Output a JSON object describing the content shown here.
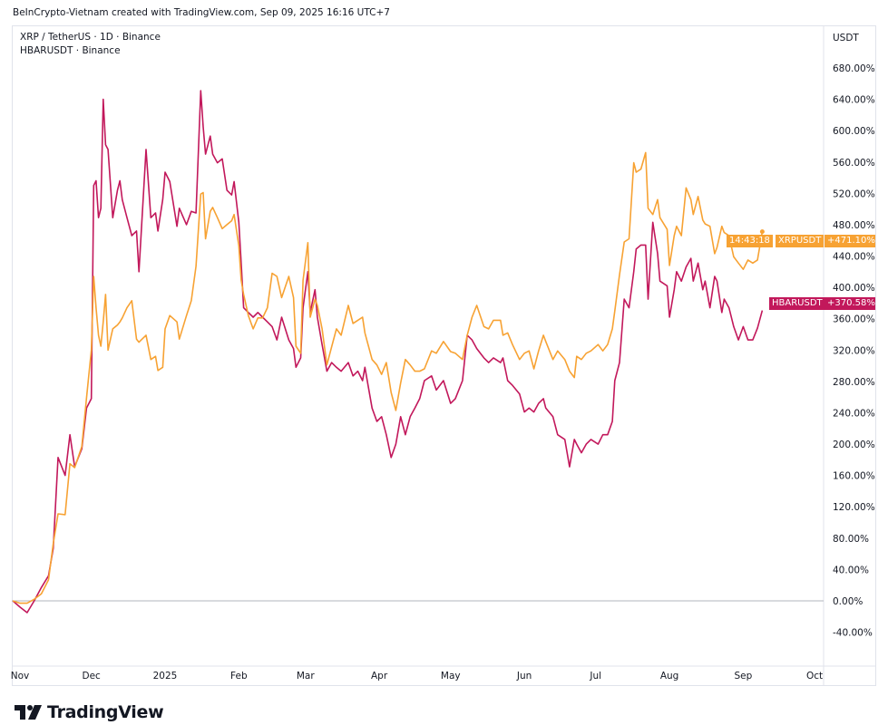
{
  "header": {
    "attribution": "BeInCrypto-Vietnam created with TradingView.com, Sep 09, 2025 16:16 UTC+7"
  },
  "legend": {
    "line1": "XRP / TetherUS · 1D · Binance",
    "line2": "HBARUSDT · Binance"
  },
  "axis_unit": "USDT",
  "logo": {
    "text": "TradingView"
  },
  "colors": {
    "xrp": "#f7a233",
    "hbar": "#c2185b",
    "grid": "#e0e3eb",
    "zero_line": "#b2b5be"
  },
  "chart_data": {
    "type": "line",
    "title": "",
    "xlabel": "",
    "ylabel": "",
    "y_unit": "%",
    "ylim": [
      -60,
      720
    ],
    "grid": false,
    "y_ticks": [
      "680.00%",
      "640.00%",
      "600.00%",
      "560.00%",
      "520.00%",
      "480.00%",
      "440.00%",
      "400.00%",
      "360.00%",
      "320.00%",
      "280.00%",
      "240.00%",
      "200.00%",
      "160.00%",
      "120.00%",
      "80.00%",
      "40.00%",
      "0.00%",
      "-40.00%"
    ],
    "x_ticks": [
      {
        "label": "Nov",
        "date": "2024-11-01"
      },
      {
        "label": "Dec",
        "date": "2024-12-01"
      },
      {
        "label": "2025",
        "date": "2025-01-01"
      },
      {
        "label": "Feb",
        "date": "2025-02-01"
      },
      {
        "label": "Mar",
        "date": "2025-03-01"
      },
      {
        "label": "Apr",
        "date": "2025-04-01"
      },
      {
        "label": "May",
        "date": "2025-05-01"
      },
      {
        "label": "Jun",
        "date": "2025-06-01"
      },
      {
        "label": "Jul",
        "date": "2025-07-01"
      },
      {
        "label": "Aug",
        "date": "2025-08-01"
      },
      {
        "label": "Sep",
        "date": "2025-09-01"
      },
      {
        "label": "Oct",
        "date": "2025-10-01"
      }
    ],
    "x": [
      "2024-10-29",
      "2024-11-01",
      "2024-11-04",
      "2024-11-07",
      "2024-11-10",
      "2024-11-13",
      "2024-11-15",
      "2024-11-17",
      "2024-11-20",
      "2024-11-22",
      "2024-11-24",
      "2024-11-27",
      "2024-11-29",
      "2024-12-01",
      "2024-12-02",
      "2024-12-03",
      "2024-12-04",
      "2024-12-05",
      "2024-12-06",
      "2024-12-07",
      "2024-12-08",
      "2024-12-10",
      "2024-12-12",
      "2024-12-13",
      "2024-12-14",
      "2024-12-16",
      "2024-12-18",
      "2024-12-20",
      "2024-12-21",
      "2024-12-24",
      "2024-12-26",
      "2024-12-28",
      "2024-12-29",
      "2024-12-31",
      "2025-01-01",
      "2025-01-03",
      "2025-01-06",
      "2025-01-07",
      "2025-01-10",
      "2025-01-12",
      "2025-01-14",
      "2025-01-16",
      "2025-01-17",
      "2025-01-18",
      "2025-01-20",
      "2025-01-21",
      "2025-01-23",
      "2025-01-25",
      "2025-01-27",
      "2025-01-29",
      "2025-01-30",
      "2025-02-01",
      "2025-02-02",
      "2025-02-03",
      "2025-02-05",
      "2025-02-07",
      "2025-02-09",
      "2025-02-11",
      "2025-02-13",
      "2025-02-15",
      "2025-02-17",
      "2025-02-19",
      "2025-02-22",
      "2025-02-24",
      "2025-02-25",
      "2025-02-27",
      "2025-02-28",
      "2025-03-02",
      "2025-03-03",
      "2025-03-05",
      "2025-03-06",
      "2025-03-08",
      "2025-03-10",
      "2025-03-12",
      "2025-03-14",
      "2025-03-16",
      "2025-03-19",
      "2025-03-21",
      "2025-03-23",
      "2025-03-25",
      "2025-03-26",
      "2025-03-29",
      "2025-03-31",
      "2025-04-02",
      "2025-04-04",
      "2025-04-06",
      "2025-04-08",
      "2025-04-10",
      "2025-04-12",
      "2025-04-14",
      "2025-04-16",
      "2025-04-18",
      "2025-04-20",
      "2025-04-23",
      "2025-04-25",
      "2025-04-28",
      "2025-05-01",
      "2025-05-03",
      "2025-05-06",
      "2025-05-08",
      "2025-05-10",
      "2025-05-12",
      "2025-05-15",
      "2025-05-17",
      "2025-05-19",
      "2025-05-22",
      "2025-05-23",
      "2025-05-25",
      "2025-05-27",
      "2025-05-30",
      "2025-06-01",
      "2025-06-03",
      "2025-06-05",
      "2025-06-07",
      "2025-06-09",
      "2025-06-10",
      "2025-06-13",
      "2025-06-15",
      "2025-06-18",
      "2025-06-20",
      "2025-06-22",
      "2025-06-23",
      "2025-06-25",
      "2025-06-27",
      "2025-06-29",
      "2025-07-02",
      "2025-07-04",
      "2025-07-06",
      "2025-07-08",
      "2025-07-09",
      "2025-07-11",
      "2025-07-13",
      "2025-07-15",
      "2025-07-17",
      "2025-07-18",
      "2025-07-20",
      "2025-07-22",
      "2025-07-23",
      "2025-07-25",
      "2025-07-27",
      "2025-07-28",
      "2025-07-31",
      "2025-08-01",
      "2025-08-03",
      "2025-08-04",
      "2025-08-06",
      "2025-08-08",
      "2025-08-10",
      "2025-08-11",
      "2025-08-13",
      "2025-08-15",
      "2025-08-16",
      "2025-08-18",
      "2025-08-20",
      "2025-08-21",
      "2025-08-23",
      "2025-08-24",
      "2025-08-26",
      "2025-08-28",
      "2025-08-30",
      "2025-09-01",
      "2025-09-03",
      "2025-09-05",
      "2025-09-07",
      "2025-09-09"
    ],
    "series": [
      {
        "name": "XRPUSDT",
        "last_label": "+471.10%",
        "countdown": "14:43:18",
        "values": [
          0,
          -3,
          -3,
          2,
          9,
          27,
          73,
          111,
          110,
          175,
          170,
          197,
          259,
          320,
          414,
          374,
          339,
          325,
          356,
          391,
          320,
          347,
          352,
          356,
          361,
          374,
          383,
          334,
          330,
          339,
          308,
          312,
          294,
          298,
          347,
          364,
          356,
          334,
          364,
          383,
          427,
          519,
          521,
          462,
          497,
          502,
          489,
          475,
          480,
          485,
          493,
          453,
          409,
          391,
          364,
          347,
          361,
          361,
          374,
          418,
          414,
          387,
          414,
          387,
          325,
          316,
          409,
          457,
          362,
          385,
          377,
          347,
          301,
          324,
          347,
          339,
          377,
          354,
          358,
          362,
          342,
          308,
          301,
          289,
          304,
          266,
          243,
          278,
          308,
          301,
          293,
          293,
          296,
          319,
          316,
          331,
          318,
          316,
          308,
          339,
          362,
          377,
          350,
          347,
          358,
          358,
          339,
          342,
          327,
          308,
          316,
          319,
          296,
          319,
          339,
          331,
          308,
          319,
          308,
          293,
          285,
          312,
          308,
          316,
          319,
          327,
          319,
          327,
          347,
          370,
          416,
          458,
          462,
          559,
          547,
          551,
          572,
          501,
          493,
          512,
          489,
          474,
          428,
          466,
          478,
          466,
          527,
          512,
          493,
          516,
          486,
          481,
          478,
          443,
          451,
          478,
          470,
          466,
          439,
          431,
          423,
          435,
          431,
          435,
          471.1
        ]
      },
      {
        "name": "HBARUSDT",
        "last_label": "+370.58%",
        "values": [
          0,
          -8,
          -15,
          0,
          17,
          32,
          67,
          183,
          160,
          212,
          171,
          194,
          246,
          258,
          530,
          536,
          489,
          501,
          640,
          582,
          576,
          489,
          524,
          536,
          512,
          489,
          466,
          472,
          420,
          576,
          489,
          495,
          472,
          512,
          547,
          535,
          478,
          501,
          480,
          497,
          495,
          651,
          605,
          570,
          593,
          570,
          559,
          564,
          524,
          518,
          535,
          483,
          431,
          374,
          368,
          362,
          368,
          362,
          356,
          350,
          333,
          362,
          333,
          322,
          298,
          310,
          374,
          420,
          368,
          397,
          362,
          327,
          293,
          304,
          298,
          293,
          304,
          287,
          293,
          281,
          298,
          246,
          229,
          235,
          212,
          183,
          200,
          235,
          212,
          235,
          246,
          258,
          281,
          287,
          269,
          281,
          252,
          258,
          281,
          339,
          333,
          322,
          310,
          304,
          310,
          304,
          310,
          281,
          275,
          264,
          241,
          246,
          241,
          252,
          258,
          246,
          235,
          212,
          206,
          171,
          206,
          200,
          189,
          200,
          206,
          200,
          212,
          212,
          229,
          281,
          304,
          385,
          374,
          420,
          449,
          454,
          454,
          385,
          483,
          443,
          408,
          402,
          362,
          397,
          420,
          408,
          426,
          437,
          408,
          431,
          397,
          408,
          374,
          414,
          408,
          368,
          385,
          374,
          350,
          333,
          350,
          333,
          333,
          348,
          370.58
        ]
      }
    ]
  }
}
